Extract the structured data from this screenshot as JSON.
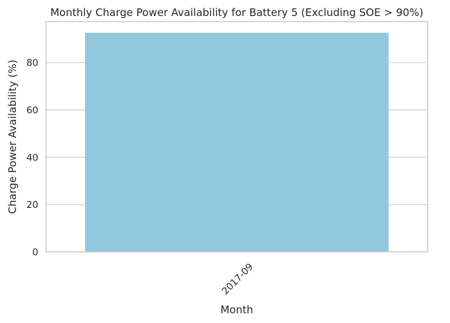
{
  "chart_data": {
    "type": "bar",
    "title": "Monthly Charge Power Availability for Battery 5 (Excluding SOE > 90%)",
    "xlabel": "Month",
    "ylabel": "Charge Power Availability (%)",
    "categories": [
      "2017-09"
    ],
    "values": [
      92.6
    ],
    "ylim": [
      0,
      97.3
    ],
    "yticks": [
      0,
      20,
      40,
      60,
      80
    ],
    "grid": "horizontal",
    "bar_color": "#92c8de",
    "xtick_rotation": 45
  }
}
